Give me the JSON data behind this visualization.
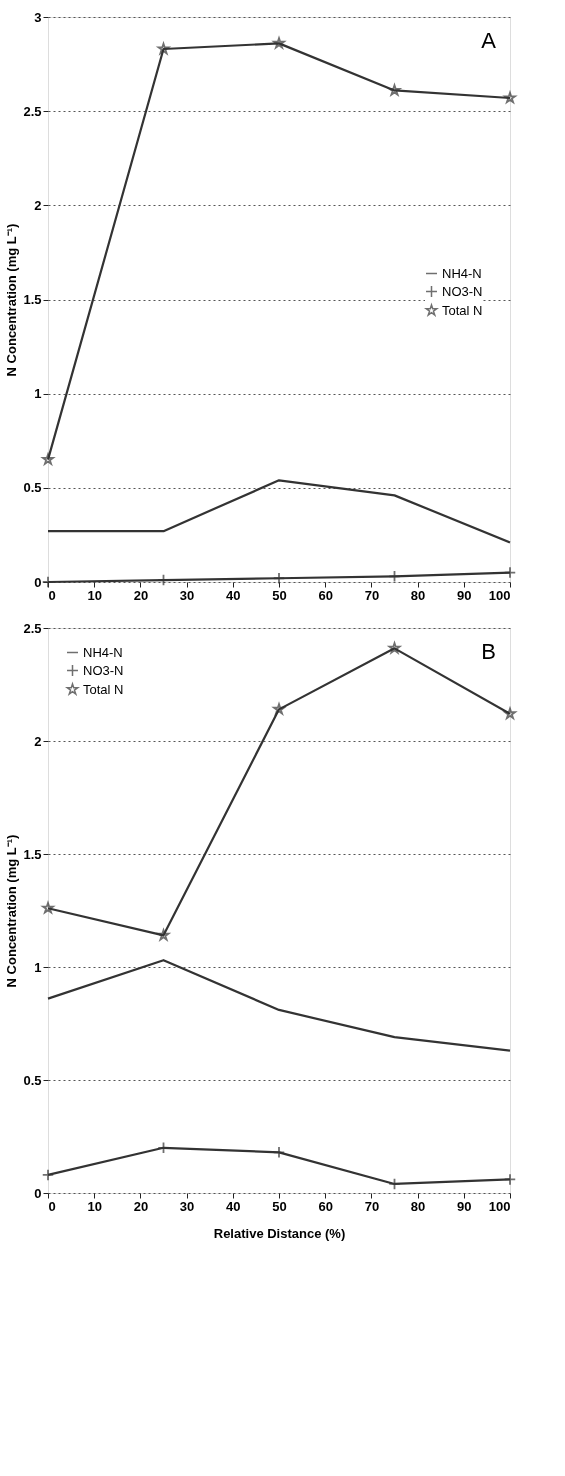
{
  "chart_data": [
    {
      "type": "line",
      "ylabel": "N Concentration (mg L⁻¹)",
      "annotations": [
        "A"
      ],
      "x": [
        0,
        25,
        50,
        75,
        100
      ],
      "xlim": [
        0,
        100
      ],
      "xticks": [
        0,
        10,
        20,
        30,
        40,
        50,
        60,
        70,
        80,
        90,
        100
      ],
      "ylim": [
        0,
        3
      ],
      "yticks": [
        0,
        0.5,
        1,
        1.5,
        2,
        2.5,
        3
      ],
      "grid": "y",
      "legend": "right",
      "series": [
        {
          "name": "NH4-N",
          "color": "#333333",
          "marker": "none",
          "values": [
            0.27,
            0.27,
            0.54,
            0.46,
            0.21
          ]
        },
        {
          "name": "NO3-N",
          "color": "#333333",
          "marker": "cross",
          "values": [
            0.0,
            0.01,
            0.02,
            0.03,
            0.05
          ]
        },
        {
          "name": "Total N",
          "color": "#333333",
          "marker": "star",
          "values": [
            0.65,
            2.83,
            2.86,
            2.61,
            2.57
          ]
        }
      ]
    },
    {
      "type": "line",
      "xlabel": "Relative Distance (%)",
      "ylabel": "N Concentration (mg L⁻¹)",
      "annotations": [
        "B"
      ],
      "x": [
        0,
        25,
        50,
        75,
        100
      ],
      "xlim": [
        0,
        100
      ],
      "xticks": [
        0,
        10,
        20,
        30,
        40,
        50,
        60,
        70,
        80,
        90,
        100
      ],
      "ylim": [
        0,
        2.5
      ],
      "yticks": [
        0,
        0.5,
        1,
        1.5,
        2,
        2.5
      ],
      "grid": "y",
      "legend": "top left",
      "series": [
        {
          "name": "NH4-N",
          "color": "#333333",
          "marker": "none",
          "values": [
            0.86,
            1.03,
            0.81,
            0.69,
            0.63
          ]
        },
        {
          "name": "NO3-N",
          "color": "#333333",
          "marker": "cross",
          "values": [
            0.08,
            0.2,
            0.18,
            0.04,
            0.06
          ]
        },
        {
          "name": "Total N",
          "color": "#333333",
          "marker": "star",
          "values": [
            1.26,
            1.14,
            2.14,
            2.41,
            2.12
          ]
        }
      ]
    }
  ]
}
